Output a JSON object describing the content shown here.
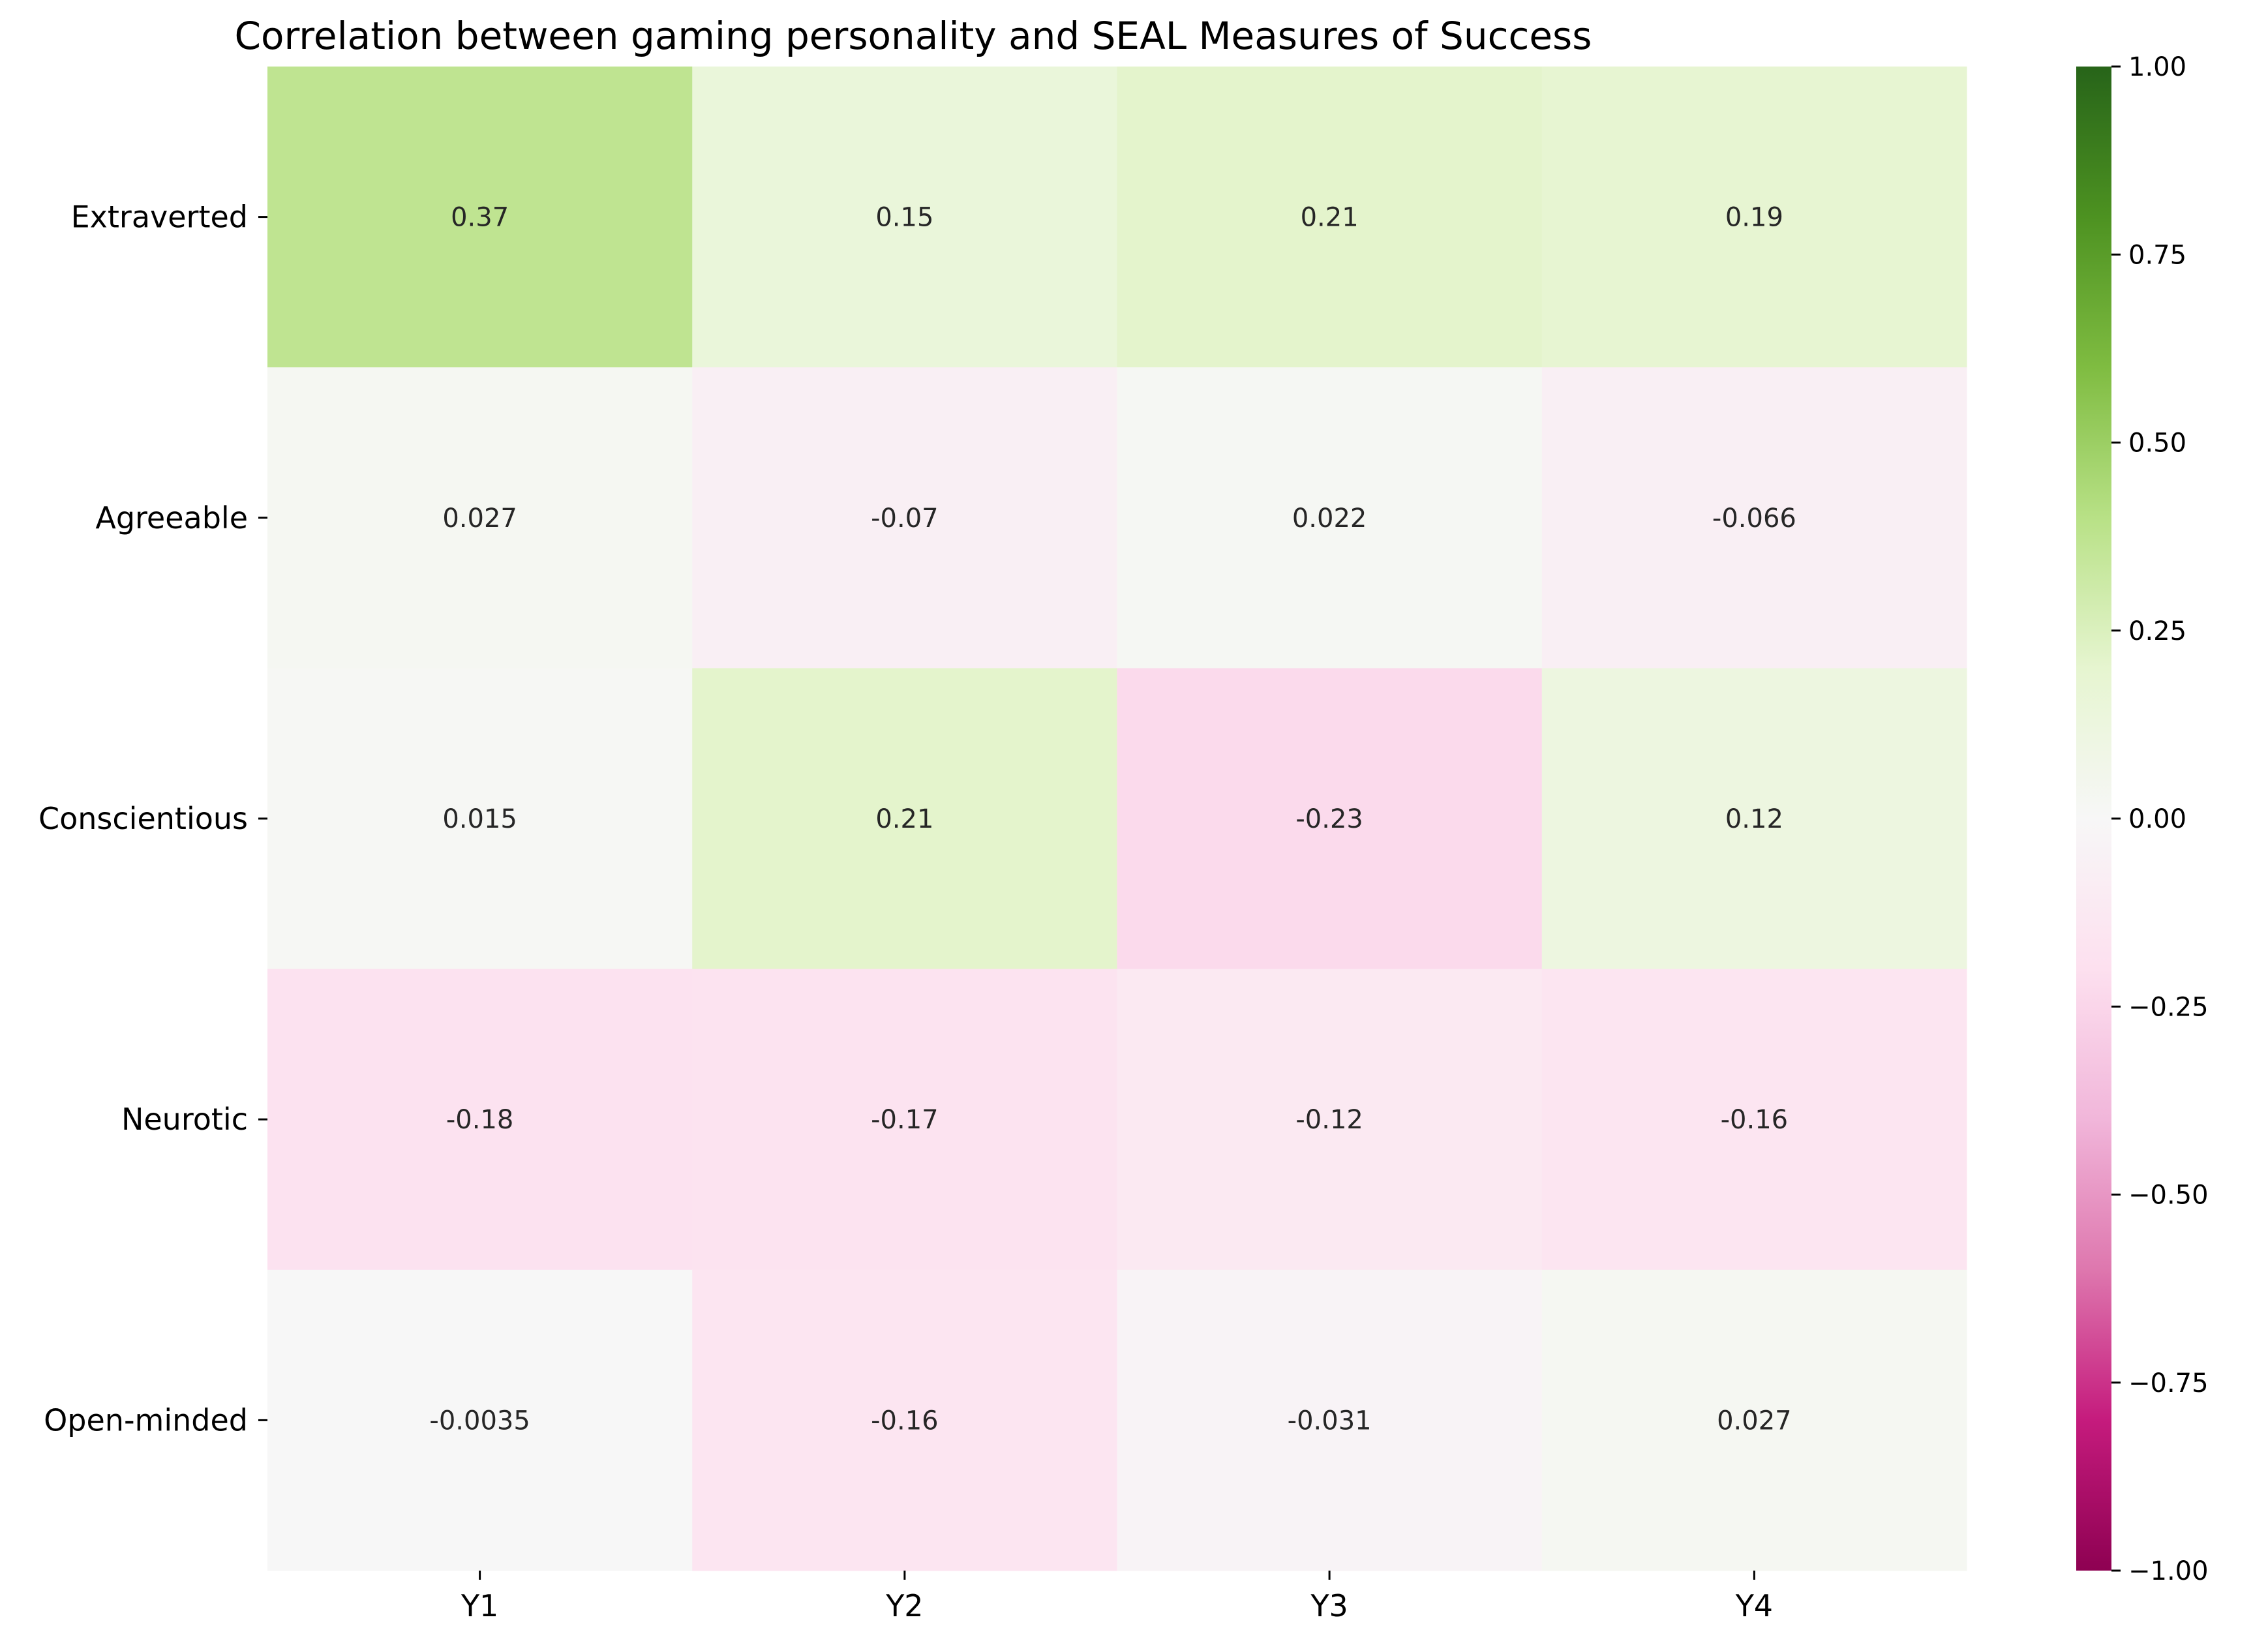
{
  "chart_data": {
    "type": "heatmap",
    "title": "Correlation between gaming personality and SEAL Measures of Success",
    "rows": [
      "Extraverted",
      "Agreeable",
      "Conscientious",
      "Neurotic",
      "Open-minded"
    ],
    "columns": [
      "Y1",
      "Y2",
      "Y3",
      "Y4"
    ],
    "values": [
      [
        0.37,
        0.15,
        0.21,
        0.19
      ],
      [
        0.027,
        -0.07,
        0.022,
        -0.066
      ],
      [
        0.015,
        0.21,
        -0.23,
        0.12
      ],
      [
        -0.18,
        -0.17,
        -0.12,
        -0.16
      ],
      [
        -0.0035,
        -0.16,
        -0.031,
        0.027
      ]
    ],
    "annotations": [
      [
        "0.37",
        "0.15",
        "0.21",
        "0.19"
      ],
      [
        "0.027",
        "-0.07",
        "0.022",
        "-0.066"
      ],
      [
        "0.015",
        "0.21",
        "-0.23",
        "0.12"
      ],
      [
        "-0.18",
        "-0.17",
        "-0.12",
        "-0.16"
      ],
      [
        "-0.0035",
        "-0.16",
        "-0.031",
        "0.027"
      ]
    ],
    "colormap": "PiYG",
    "colormap_stops": [
      "#8e0152",
      "#c51b7d",
      "#de77ae",
      "#f1b6da",
      "#fde0ef",
      "#f7f7f7",
      "#e6f5d0",
      "#b8e186",
      "#7fbc41",
      "#4d9221",
      "#276419"
    ],
    "vmin": -1.0,
    "vmax": 1.0,
    "colorbar_ticks": [
      "1.00",
      "0.75",
      "0.50",
      "0.25",
      "0.00",
      "−0.25",
      "−0.50",
      "−0.75",
      "−1.00"
    ],
    "colorbar_tick_values": [
      1.0,
      0.75,
      0.5,
      0.25,
      0.0,
      -0.25,
      -0.5,
      -0.75,
      -1.0
    ]
  }
}
